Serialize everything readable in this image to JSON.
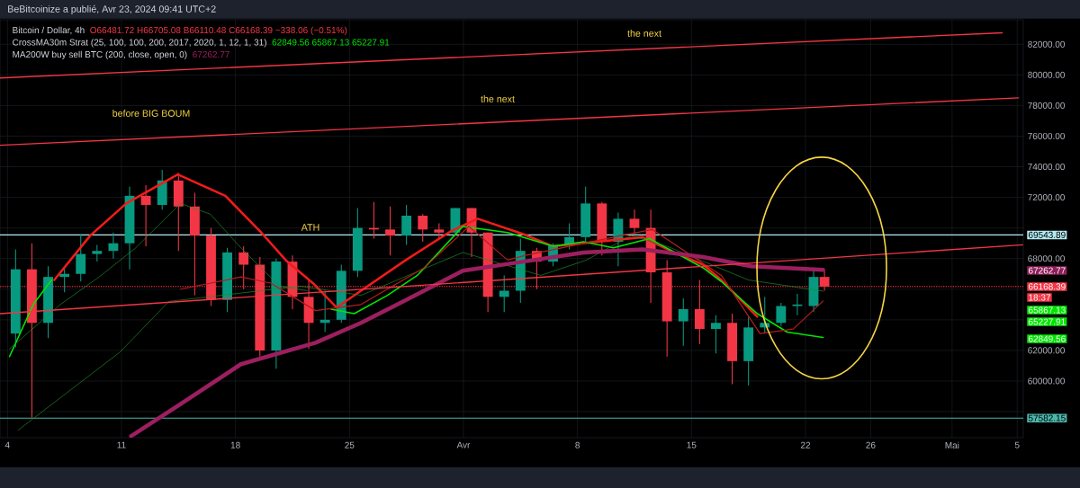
{
  "chart_data": {
    "type": "candlestick",
    "title": "BeBitcoinize a publié, Avr 23, 2024 09:41 UTC+2",
    "subtitle": "Bitcoin / Dollar, 4h",
    "x": [
      "2024-03-04T12:00",
      "2024-03-05T12:00",
      "2024-03-06T12:00",
      "2024-03-07T12:00",
      "2024-03-08T12:00",
      "2024-03-09T12:00",
      "2024-03-10T12:00",
      "2024-03-11T12:00",
      "2024-03-12T12:00",
      "2024-03-13T12:00",
      "2024-03-14T12:00",
      "2024-03-15T12:00",
      "2024-03-16T12:00",
      "2024-03-17T12:00",
      "2024-03-18T12:00",
      "2024-03-19T12:00",
      "2024-03-20T12:00",
      "2024-03-21T12:00",
      "2024-03-22T12:00",
      "2024-03-23T12:00",
      "2024-03-24T12:00",
      "2024-03-25T12:00",
      "2024-03-26T12:00",
      "2024-03-27T12:00",
      "2024-03-28T12:00",
      "2024-03-29T12:00",
      "2024-03-30T12:00",
      "2024-03-31T12:00",
      "2024-04-01T12:00",
      "2024-04-02T12:00",
      "2024-04-03T12:00",
      "2024-04-04T12:00",
      "2024-04-05T12:00",
      "2024-04-06T12:00",
      "2024-04-07T12:00",
      "2024-04-08T12:00",
      "2024-04-09T12:00",
      "2024-04-10T12:00",
      "2024-04-11T12:00",
      "2024-04-12T12:00",
      "2024-04-13T12:00",
      "2024-04-14T12:00",
      "2024-04-15T12:00",
      "2024-04-16T12:00",
      "2024-04-17T12:00",
      "2024-04-18T12:00",
      "2024-04-19T12:00",
      "2024-04-20T12:00",
      "2024-04-21T12:00",
      "2024-04-22T12:00",
      "2024-04-23T04:00"
    ],
    "ohlc": [
      [
        63100,
        68600,
        62200,
        67300
      ],
      [
        67300,
        69000,
        57600,
        63800
      ],
      [
        63800,
        67500,
        62800,
        66800
      ],
      [
        66800,
        67400,
        65800,
        67000
      ],
      [
        67000,
        69600,
        66500,
        68300
      ],
      [
        68300,
        68900,
        67800,
        68500
      ],
      [
        68500,
        69700,
        68000,
        69000
      ],
      [
        69000,
        72700,
        67300,
        72100
      ],
      [
        72100,
        72800,
        68800,
        71500
      ],
      [
        71500,
        73800,
        71200,
        73100
      ],
      [
        73100,
        73600,
        68500,
        71400
      ],
      [
        71400,
        72300,
        65600,
        69500
      ],
      [
        69500,
        70000,
        64900,
        65300
      ],
      [
        65300,
        68700,
        64500,
        68400
      ],
      [
        68400,
        68800,
        66000,
        67600
      ],
      [
        67600,
        68100,
        61600,
        62000
      ],
      [
        62000,
        68000,
        60800,
        67800
      ],
      [
        67800,
        68200,
        64700,
        65500
      ],
      [
        65500,
        66600,
        62100,
        63800
      ],
      [
        63800,
        65900,
        63200,
        64000
      ],
      [
        64000,
        67600,
        63800,
        67200
      ],
      [
        67200,
        71300,
        66800,
        70000
      ],
      [
        70000,
        71700,
        69300,
        69900
      ],
      [
        69900,
        71400,
        68200,
        69500
      ],
      [
        69500,
        71500,
        68900,
        70800
      ],
      [
        70800,
        70900,
        69100,
        69900
      ],
      [
        69900,
        70300,
        69300,
        69700
      ],
      [
        69700,
        71300,
        69600,
        71300
      ],
      [
        71300,
        71300,
        68100,
        69700
      ],
      [
        69700,
        69700,
        64500,
        65500
      ],
      [
        65500,
        66900,
        64500,
        65900
      ],
      [
        65900,
        69300,
        65100,
        68500
      ],
      [
        68500,
        68700,
        66000,
        67800
      ],
      [
        67800,
        69000,
        67500,
        68900
      ],
      [
        68900,
        70300,
        68600,
        69400
      ],
      [
        69400,
        72700,
        69000,
        71600
      ],
      [
        71600,
        71700,
        68200,
        69100
      ],
      [
        69100,
        71000,
        67500,
        70600
      ],
      [
        70600,
        71200,
        69600,
        70000
      ],
      [
        70000,
        71200,
        65100,
        67100
      ],
      [
        67100,
        67900,
        61600,
        63900
      ],
      [
        63900,
        65400,
        62300,
        64700
      ],
      [
        64700,
        66600,
        62400,
        63400
      ],
      [
        63400,
        64300,
        61800,
        63800
      ],
      [
        63800,
        64400,
        59800,
        61300
      ],
      [
        61300,
        64200,
        59700,
        63500
      ],
      [
        63500,
        65500,
        63100,
        63800
      ],
      [
        63800,
        65100,
        63600,
        64900
      ],
      [
        64900,
        65700,
        64300,
        65000
      ],
      [
        64900,
        67200,
        64500,
        66800
      ],
      [
        66800,
        67200,
        65900,
        66168.39
      ]
    ],
    "series": [
      {
        "type": "line",
        "color": "#f21b1b",
        "x": [
          "2024-03-06T21:00",
          "2024-03-09T02:00",
          "2024-03-11T07:00",
          "2024-03-14T11:00",
          "2024-03-17T09:00",
          "2024-03-19T14:00",
          "2024-03-21T02:00",
          "2024-03-22T18:00",
          "2024-03-24T05:00",
          "2024-03-25T17:00",
          "2024-03-28T11:00",
          "2024-03-31T06:00",
          "2024-04-01T21:00",
          "2024-04-04T16:00",
          "2024-04-06T12:00",
          "2024-04-12T00:00",
          "2024-04-13T22:00",
          "2024-04-15T17:00",
          "2024-04-16T20:00",
          "2024-04-18T16:00",
          "2024-04-19T01:00"
        ],
        "values": [
          66600,
          69500,
          71600,
          73500,
          72100,
          69700,
          67900,
          66400,
          64800,
          65900,
          67900,
          69800,
          70600,
          69600,
          68800,
          69400,
          68400,
          67600,
          66600,
          64600,
          64200
        ]
      },
      {
        "type": "line",
        "color": "#00e600",
        "x": [
          "2024-03-04T03:00",
          "2024-03-05T14:00",
          "2024-03-06T17:00",
          "2024-03-14T11:00",
          "2024-03-23T21:00",
          "2024-03-25T07:00",
          "2024-03-27T08:00",
          "2024-03-29T04:00",
          "2024-03-31T23:00",
          "2024-04-03T17:00",
          "2024-04-06T12:00",
          "2024-04-08T09:00",
          "2024-04-10T05:00",
          "2024-04-12T10:00",
          "2024-04-15T17:00",
          "2024-04-16T20:00",
          "2024-04-19T01:00",
          "2024-04-20T21:00",
          "2024-04-23T02:00"
        ],
        "values": [
          61600,
          65000,
          66600,
          null,
          64700,
          64400,
          65600,
          66900,
          70100,
          69700,
          68800,
          69100,
          68700,
          69300,
          67400,
          66500,
          64400,
          63200,
          62850
        ]
      },
      {
        "type": "line",
        "color": "#1f8f2a",
        "x": [
          "2024-03-04T03:00",
          "2024-03-07T06:00",
          "2024-03-09T15:00",
          "2024-03-11T21:00",
          "2024-03-14T15:00",
          "2024-03-16T11:00",
          "2024-03-18T08:00",
          "2024-03-20T17:00",
          "2024-03-22T09:00"
        ],
        "values": [
          62100,
          65000,
          66800,
          68700,
          71600,
          70900,
          68700,
          66200,
          65900
        ]
      },
      {
        "type": "line",
        "color": "#1f8f2a",
        "x": [
          "2024-03-04T16:00",
          "2024-03-10T22:00",
          "2024-03-13T22:00",
          "2024-03-22T00:00",
          "2024-03-25T17:00",
          "2024-03-31T23:00",
          "2024-04-05T18:00",
          "2024-04-08T13:00",
          "2024-04-11T07:00",
          "2024-04-13T12:00",
          "2024-04-18T12:00",
          "2024-04-23T02:00"
        ],
        "values": [
          56800,
          61900,
          65200,
          66200,
          65600,
          68400,
          66900,
          67900,
          69500,
          68800,
          66600,
          65870
        ]
      },
      {
        "type": "line",
        "color": "#b71c1c",
        "x": [
          "2024-03-14T15:00",
          "2024-03-18T08:00",
          "2024-03-20T04:00",
          "2024-03-22T22:00",
          "2024-03-25T17:00",
          "2024-03-29T14:00",
          "2024-04-01T08:00",
          "2024-04-03T17:00",
          "2024-04-04T18:00",
          "2024-04-10T05:00",
          "2024-04-12T14:00",
          "2024-04-16T20:00",
          "2024-04-19T05:00",
          "2024-04-21T06:00",
          "2024-04-23T02:00"
        ],
        "values": [
          66000,
          66800,
          66400,
          64600,
          65000,
          67400,
          70100,
          67900,
          68200,
          69400,
          69900,
          66900,
          63100,
          63400,
          65230
        ]
      },
      {
        "type": "line",
        "color": "#9c1f5f",
        "x": [
          "2024-03-11T14:00",
          "2024-03-14T15:00",
          "2024-03-18T08:00",
          "2024-03-22T22:00",
          "2024-03-25T17:00",
          "2024-03-28T07:00",
          "2024-03-31T23:00",
          "2024-04-04T16:00",
          "2024-04-08T09:00",
          "2024-04-12T00:00",
          "2024-04-15T17:00",
          "2024-04-18T16:00",
          "2024-04-23T02:00"
        ],
        "values": [
          56400,
          58500,
          61100,
          62500,
          63800,
          65200,
          67200,
          67800,
          68400,
          68600,
          68100,
          67500,
          67260
        ]
      },
      {
        "type": "line",
        "color": "#f23645",
        "x": [
          "2024-03-03T13:00",
          "2024-05-04T02:00"
        ],
        "values": [
          79800,
          82750
        ]
      },
      {
        "type": "line",
        "color": "#f23645",
        "x": [
          "2024-03-03T13:00",
          "2024-05-05T02:00"
        ],
        "values": [
          75400,
          78500
        ]
      },
      {
        "type": "line",
        "color": "#f23645",
        "x": [
          "2024-03-03T13:00",
          "2024-05-05T09:00"
        ],
        "values": [
          64400,
          68900
        ]
      }
    ],
    "xlim": [
      "2024-03-03T13:00",
      "2024-05-05T09:00"
    ],
    "xticks": [
      {
        "value": "2024-03-04",
        "label": "4"
      },
      {
        "value": "2024-03-11",
        "label": "11"
      },
      {
        "value": "2024-03-18",
        "label": "18"
      },
      {
        "value": "2024-03-25",
        "label": "25"
      },
      {
        "value": "2024-04-01",
        "label": "Avr"
      },
      {
        "value": "2024-04-08",
        "label": "8"
      },
      {
        "value": "2024-04-15",
        "label": "15"
      },
      {
        "value": "2024-04-22",
        "label": "22"
      },
      {
        "value": "2024-04-26",
        "label": "26"
      },
      {
        "value": "2024-05-01",
        "label": "Mai"
      },
      {
        "value": "2024-05-05",
        "label": "5"
      }
    ],
    "ylim": [
      56300,
      83600
    ],
    "yticks": [
      {
        "value": 58000,
        "label": null
      },
      {
        "value": 60000,
        "label": "60000.00"
      },
      {
        "value": 62000,
        "label": "62000.00"
      },
      {
        "value": 64000,
        "label": null
      },
      {
        "value": 66000,
        "label": null
      },
      {
        "value": 68000,
        "label": "68000.00"
      },
      {
        "value": 70000,
        "label": null
      },
      {
        "value": 72000,
        "label": "72000.00"
      },
      {
        "value": 74000,
        "label": "74000.00"
      },
      {
        "value": 76000,
        "label": "76000.00"
      },
      {
        "value": 78000,
        "label": "78000.00"
      },
      {
        "value": 80000,
        "label": "80000.00"
      },
      {
        "value": 82000,
        "label": "82000.00"
      }
    ],
    "grid": true,
    "ref_lines": [
      {
        "axis": "y",
        "value": 69543.89,
        "label": "69543.89",
        "color": "#b2ebf2"
      },
      {
        "axis": "y",
        "value": 57582.15,
        "label": "57582.15",
        "color": "#4db6ac"
      },
      {
        "axis": "y",
        "value": 66168.39,
        "label": "66168.39",
        "color": "#f23645",
        "line_style": "dotted"
      }
    ],
    "annotations": [
      "O66481.72 H66705.08 B66110.48 C66168.39 −338.06 (−0.51%)",
      "CrossMA30m Strat (25, 100, 100, 200, 2017, 2020, 1, 12, 1, 31)",
      "62849.56 65867.13 65227.91",
      "MA200W buy sell BTC (200, close, open, 0)",
      "67262.77",
      "18:37",
      "67262.77",
      "65867.13",
      "65227.91",
      "62849.56",
      "the next",
      "the next",
      "before BIG BOUM",
      "ATH"
    ]
  }
}
